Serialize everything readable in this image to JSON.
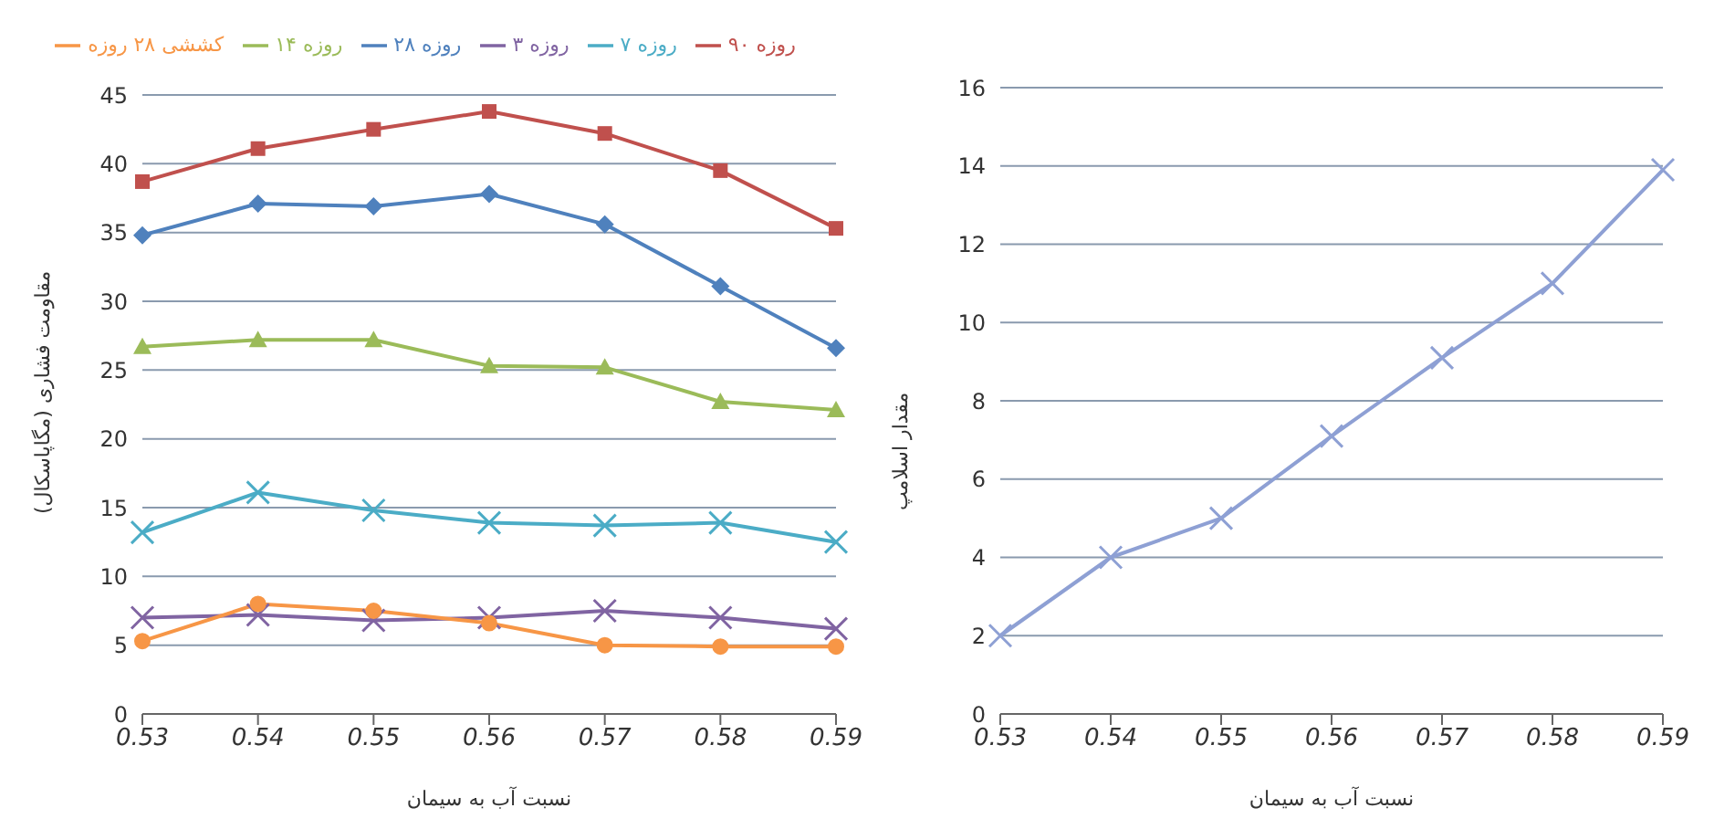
{
  "chart_data": [
    {
      "type": "line",
      "xlabel": "نسبت آب به سیمان",
      "ylabel": "مقاومت فشاری (مگاپاسکال)",
      "categories": [
        "0.53",
        "0.54",
        "0.55",
        "0.56",
        "0.57",
        "0.58",
        "0.59"
      ],
      "series": [
        {
          "name": "۳ روزه",
          "color": "#8064a2",
          "marker": "cross",
          "values": [
            7.0,
            7.2,
            6.8,
            7.0,
            7.5,
            7.0,
            6.2
          ]
        },
        {
          "name": "۷ روزه",
          "color": "#4bacc6",
          "marker": "cross",
          "values": [
            13.2,
            16.1,
            14.8,
            13.9,
            13.7,
            13.9,
            12.5
          ]
        },
        {
          "name": "۱۴ روزه",
          "color": "#9bbb59",
          "marker": "triangle",
          "values": [
            26.7,
            27.2,
            27.2,
            25.3,
            25.2,
            22.7,
            22.1
          ]
        },
        {
          "name": "۲۸ روزه",
          "color": "#4f81bd",
          "marker": "diamond",
          "values": [
            34.8,
            37.1,
            36.9,
            37.8,
            35.6,
            31.1,
            26.6
          ]
        },
        {
          "name": "۹۰ روزه",
          "color": "#c0504d",
          "marker": "square",
          "values": [
            38.7,
            41.1,
            42.5,
            43.8,
            42.2,
            39.5,
            35.3
          ]
        },
        {
          "name": "کششی ۲۸ روزه",
          "color": "#f79646",
          "marker": "circle",
          "values": [
            5.3,
            8.0,
            7.5,
            6.6,
            5.0,
            4.9,
            4.9
          ]
        }
      ],
      "ylim": [
        0,
        45
      ],
      "yticks": [
        0,
        5,
        10,
        15,
        20,
        25,
        30,
        35,
        40,
        45
      ],
      "grid": "y",
      "legend": "top"
    },
    {
      "type": "line",
      "xlabel": "نسبت آب به سیمان",
      "ylabel": "مقدار اسلامپ",
      "categories": [
        "0.53",
        "0.54",
        "0.55",
        "0.56",
        "0.57",
        "0.58",
        "0.59"
      ],
      "series": [
        {
          "color": "#8ea0d4",
          "values": [
            2.0,
            4.0,
            5.0,
            7.1,
            9.1,
            11.0,
            13.9
          ]
        }
      ],
      "marker": "cross",
      "ylim": [
        0,
        16
      ],
      "yticks": [
        0,
        2,
        4,
        6,
        8,
        10,
        12,
        14,
        16
      ],
      "grid": "y"
    }
  ]
}
